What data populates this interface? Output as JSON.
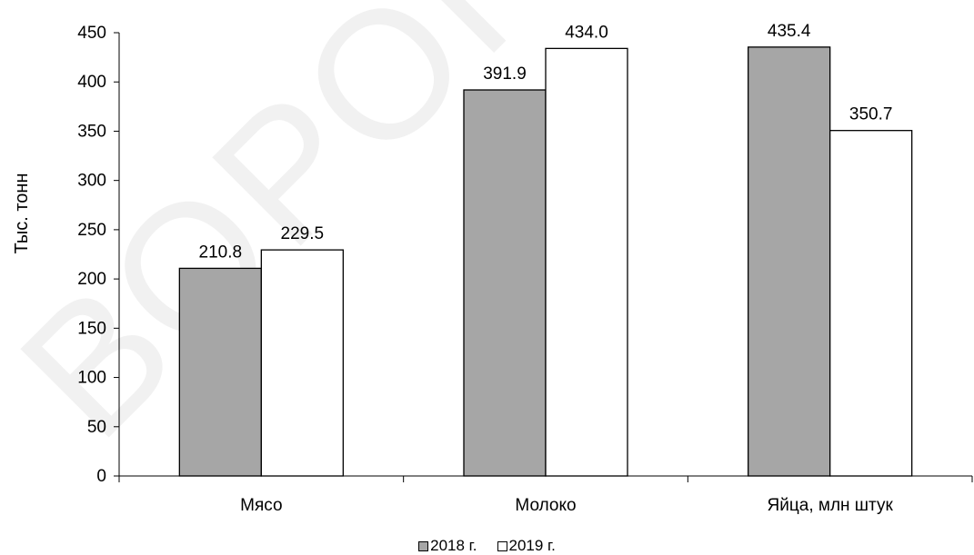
{
  "chart_data": {
    "type": "bar",
    "categories": [
      "Мясо",
      "Молоко",
      "Яйца, млн штук"
    ],
    "series": [
      {
        "name": "2018 г.",
        "values": [
          210.8,
          391.9,
          435.4
        ],
        "color": "#a6a6a6"
      },
      {
        "name": "2019 г.",
        "values": [
          229.5,
          434.0,
          350.7
        ],
        "color": "#ffffff"
      }
    ],
    "data_labels": [
      [
        "210.8",
        "391.9",
        "435.4"
      ],
      [
        "229.5",
        "434.0",
        "350.7"
      ]
    ],
    "ylabel": "Тыс. тонн",
    "xlabel": "",
    "ylim": [
      0,
      450
    ],
    "yticks": [
      0,
      50,
      100,
      150,
      200,
      250,
      300,
      350,
      400,
      450
    ],
    "grid": false,
    "legend_position": "bottom-center",
    "bar_outline_color": "#000000"
  },
  "watermark": {
    "text": "ВОРОНЕЖ"
  }
}
